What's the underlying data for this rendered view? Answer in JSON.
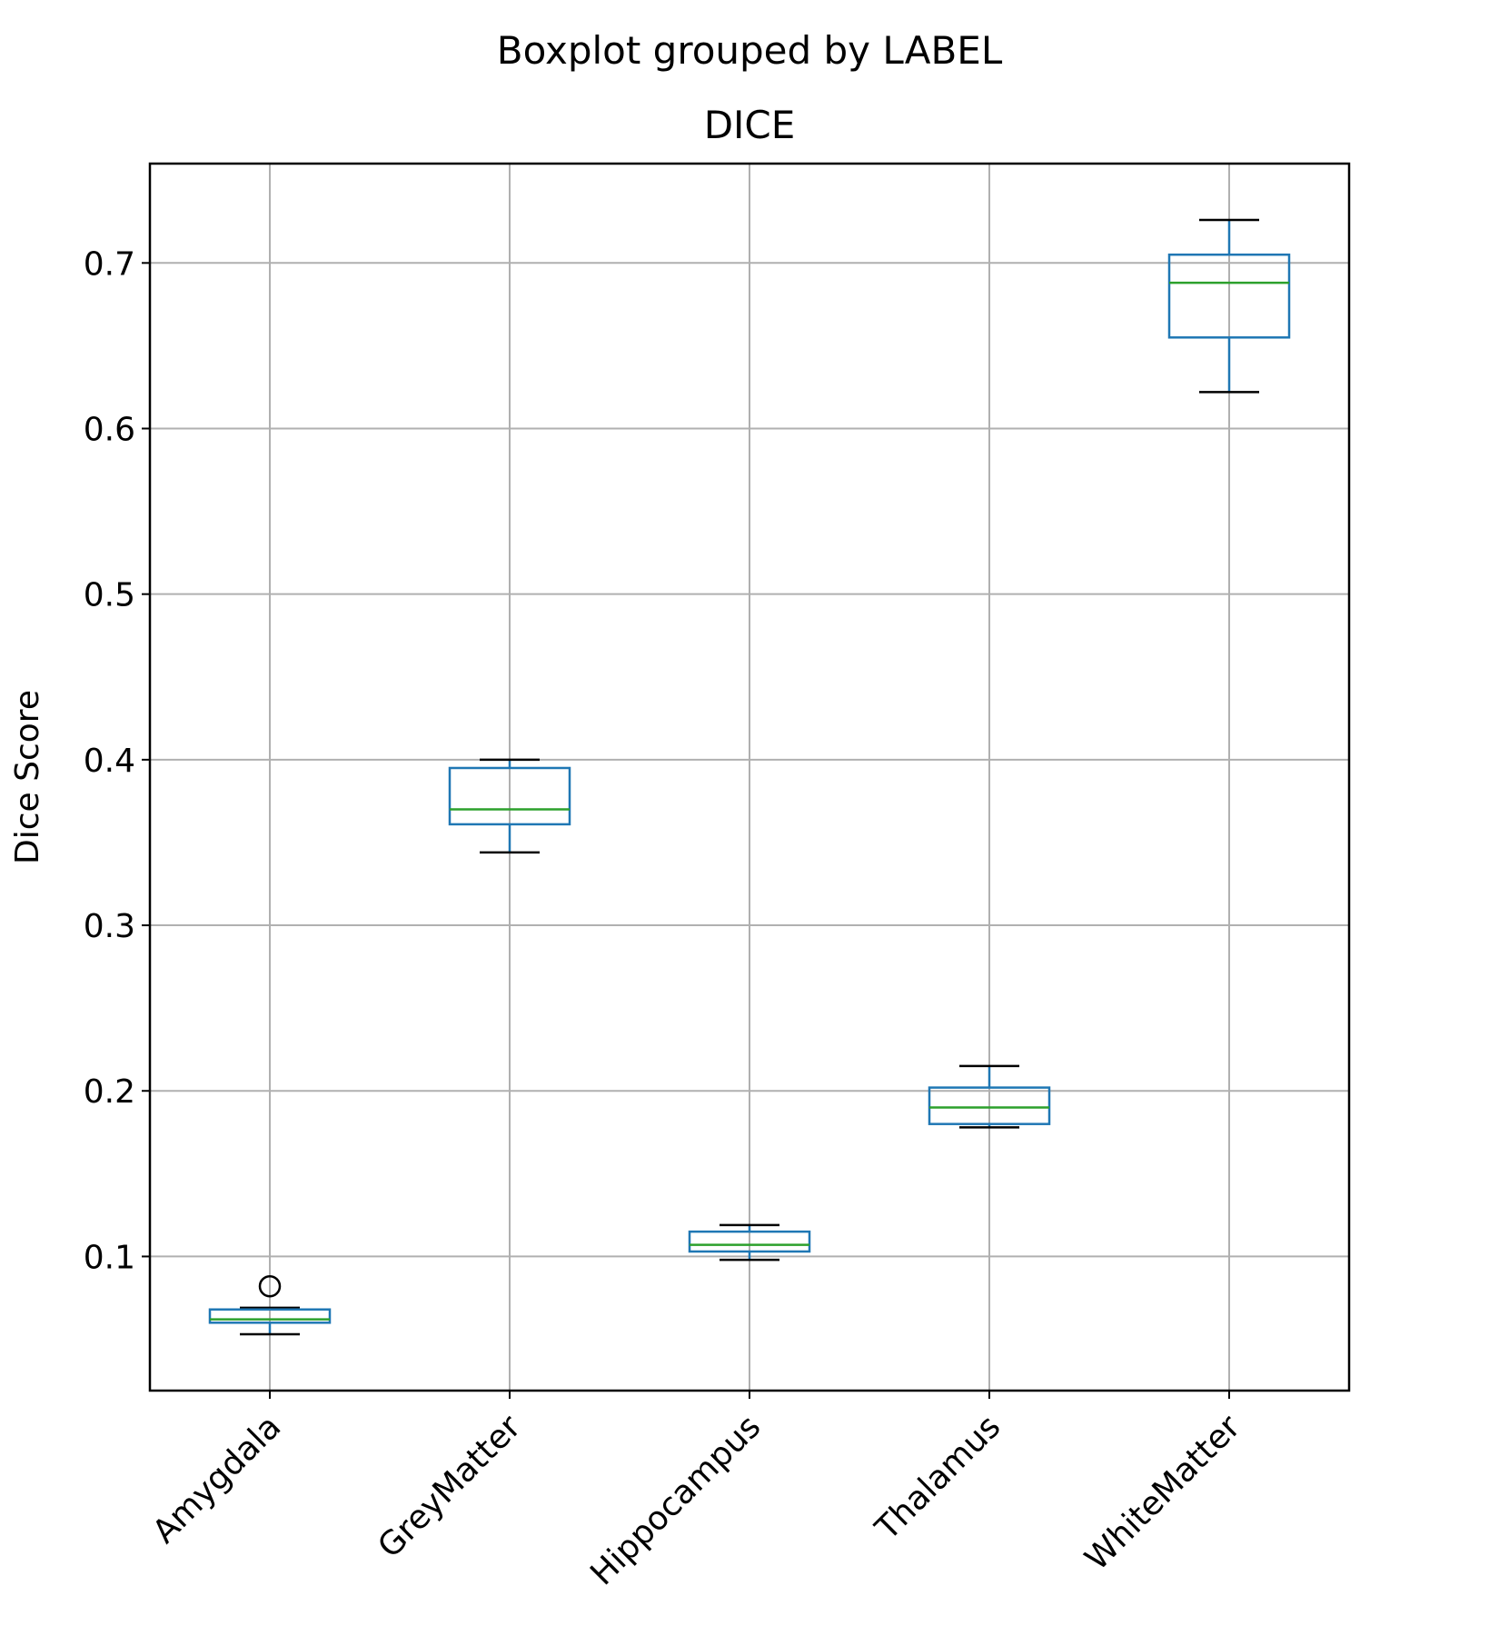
{
  "chart_data": {
    "type": "box",
    "suptitle": "Boxplot grouped by LABEL",
    "title": "DICE",
    "xlabel": "",
    "ylabel": "Dice Score",
    "ylim": [
      0.019,
      0.76
    ],
    "yticks": [
      0.1,
      0.2,
      0.3,
      0.4,
      0.5,
      0.6,
      0.7
    ],
    "ytick_labels": [
      "0.1",
      "0.2",
      "0.3",
      "0.4",
      "0.5",
      "0.6",
      "0.7"
    ],
    "grid": true,
    "categories": [
      "Amygdala",
      "GreyMatter",
      "Hippocampus",
      "Thalamus",
      "WhiteMatter"
    ],
    "boxes": [
      {
        "label": "Amygdala",
        "whisker_low": 0.053,
        "q1": 0.06,
        "median": 0.062,
        "q3": 0.068,
        "whisker_high": 0.069,
        "outliers": [
          0.082
        ]
      },
      {
        "label": "GreyMatter",
        "whisker_low": 0.344,
        "q1": 0.361,
        "median": 0.37,
        "q3": 0.395,
        "whisker_high": 0.4,
        "outliers": []
      },
      {
        "label": "Hippocampus",
        "whisker_low": 0.098,
        "q1": 0.103,
        "median": 0.107,
        "q3": 0.115,
        "whisker_high": 0.119,
        "outliers": []
      },
      {
        "label": "Thalamus",
        "whisker_low": 0.178,
        "q1": 0.18,
        "median": 0.19,
        "q3": 0.202,
        "whisker_high": 0.215,
        "outliers": []
      },
      {
        "label": "WhiteMatter",
        "whisker_low": 0.622,
        "q1": 0.655,
        "median": 0.688,
        "q3": 0.705,
        "whisker_high": 0.726,
        "outliers": []
      }
    ],
    "colors": {
      "box": "#1f77b4",
      "median": "#2ca02c",
      "whisker_cap": "#000000",
      "grid": "#b0b0b0",
      "axes": "#000000"
    }
  }
}
